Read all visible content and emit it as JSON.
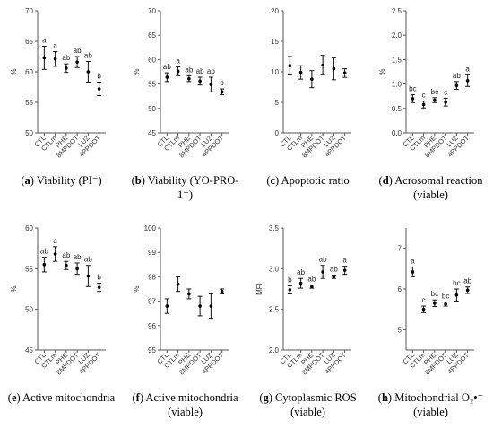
{
  "chart_data": [
    {
      "type": "scatter",
      "caption": {
        "letter": "a",
        "text": "Viability (PI⁻)"
      },
      "ylabel": "%",
      "ylim": [
        50,
        70
      ],
      "yticks": [
        "50",
        "55",
        "60",
        "65",
        "70"
      ],
      "categories": [
        "CTL",
        "CTLm",
        "PHE",
        "8MPDOT",
        "LUZ",
        "4PPDOT"
      ],
      "series": [
        {
          "values": [
            62.3,
            62.1,
            60.6,
            61.6,
            60.0,
            57.2
          ],
          "errors": [
            1.9,
            1.2,
            0.7,
            0.9,
            1.7,
            1.1
          ],
          "letters": [
            "a",
            "a",
            "ab",
            "ab",
            "ab",
            "b"
          ]
        }
      ]
    },
    {
      "type": "scatter",
      "caption": {
        "letter": "b",
        "text": "Viability (YO-PRO-1⁻)"
      },
      "ylabel": "%",
      "ylim": [
        45,
        70
      ],
      "yticks": [
        "45",
        "50",
        "55",
        "60",
        "65",
        "70"
      ],
      "categories": [
        "CTL",
        "CTLm",
        "PHE",
        "8MPDOT",
        "LUZ",
        "4PPDOT"
      ],
      "series": [
        {
          "values": [
            56.4,
            57.6,
            56.1,
            55.6,
            54.9,
            53.4
          ],
          "errors": [
            0.9,
            0.9,
            0.6,
            0.8,
            1.5,
            0.6
          ],
          "letters": [
            "ab",
            "a",
            "ab",
            "ab",
            "ab",
            "b"
          ]
        }
      ]
    },
    {
      "type": "scatter",
      "caption": {
        "letter": "c",
        "text": "Apoptotic ratio"
      },
      "ylabel": "",
      "ylim": [
        0,
        20
      ],
      "yticks": [
        "0",
        "5",
        "10",
        "15",
        "20"
      ],
      "categories": [
        "CTL",
        "CTLm",
        "PHE",
        "8MPDOT",
        "LUZ",
        "4PPDOT"
      ],
      "series": [
        {
          "values": [
            11.0,
            9.9,
            8.8,
            11.1,
            10.5,
            9.8
          ],
          "errors": [
            1.5,
            1.1,
            1.4,
            1.6,
            1.8,
            0.7
          ],
          "letters": [
            "",
            "",
            "",
            "",
            "",
            ""
          ]
        }
      ]
    },
    {
      "type": "scatter",
      "caption": {
        "letter": "d",
        "text": "Acrosomal reaction (viable)"
      },
      "ylabel": "%",
      "ylim": [
        0,
        2.5
      ],
      "yticks": [
        "0.0",
        "0.5",
        "1.0",
        "1.5",
        "2.0",
        "2.5"
      ],
      "categories": [
        "CTL",
        "CTLm",
        "PHE",
        "8MPDOT",
        "LUZ",
        "4PPDOT"
      ],
      "series": [
        {
          "values": [
            0.7,
            0.58,
            0.67,
            0.63,
            0.97,
            1.07
          ],
          "errors": [
            0.08,
            0.07,
            0.05,
            0.08,
            0.08,
            0.12
          ],
          "letters": [
            "bc",
            "c",
            "bc",
            "c",
            "ab",
            "a"
          ]
        }
      ]
    },
    {
      "type": "scatter",
      "caption": {
        "letter": "e",
        "text": "Active mitochondria"
      },
      "ylabel": "%",
      "ylim": [
        45,
        60
      ],
      "yticks": [
        "45",
        "50",
        "55",
        "60"
      ],
      "categories": [
        "CTL",
        "CTLm",
        "PHE",
        "8MPDOT",
        "LUZ",
        "4PPDOT"
      ],
      "series": [
        {
          "values": [
            55.5,
            56.8,
            55.4,
            55.0,
            54.1,
            52.7
          ],
          "errors": [
            0.9,
            0.9,
            0.5,
            0.7,
            1.3,
            0.5
          ],
          "letters": [
            "ab",
            "a",
            "ab",
            "ab",
            "ab",
            "b"
          ]
        }
      ]
    },
    {
      "type": "scatter",
      "caption": {
        "letter": "f",
        "text": "Active mitochondria (viable)"
      },
      "ylabel": "%",
      "ylim": [
        95,
        100
      ],
      "yticks": [
        "95",
        "96",
        "97",
        "98",
        "99",
        "100"
      ],
      "categories": [
        "CTL",
        "CTLm",
        "PHE",
        "8MPDOT",
        "LUZ",
        "4PPDOT"
      ],
      "series": [
        {
          "values": [
            96.8,
            97.7,
            97.3,
            96.8,
            96.8,
            97.4
          ],
          "errors": [
            0.3,
            0.3,
            0.2,
            0.4,
            0.5,
            0.1
          ],
          "letters": [
            "",
            "",
            "",
            "",
            "",
            ""
          ]
        }
      ]
    },
    {
      "type": "scatter",
      "caption": {
        "letter": "g",
        "text": "Cytoplasmic ROS (viable)"
      },
      "ylabel": "MFI",
      "ylim": [
        2.0,
        3.5
      ],
      "yticks": [
        "2.0",
        "2.5",
        "3.0",
        "3.5"
      ],
      "categories": [
        "CTL",
        "CTLm",
        "PHE",
        "8MPDOT",
        "LUZ",
        "4PPDOT"
      ],
      "series": [
        {
          "values": [
            2.74,
            2.82,
            2.78,
            2.96,
            2.9,
            2.98
          ],
          "errors": [
            0.05,
            0.06,
            0.02,
            0.08,
            0.02,
            0.05
          ],
          "letters": [
            "b",
            "ab",
            "ab",
            "ab",
            "ab",
            "a"
          ]
        }
      ]
    },
    {
      "type": "scatter",
      "caption": {
        "letter": "h",
        "text": "Mitochondrial O₂•⁻ (viable)"
      },
      "ylabel": "",
      "ylim": [
        4.5,
        7.5
      ],
      "yticks": [
        "5",
        "6",
        "7"
      ],
      "categories": [
        "CTL",
        "CTLm",
        "PHE",
        "8MPDOT",
        "LUZ",
        "4PPDOT"
      ],
      "series": [
        {
          "values": [
            6.42,
            5.5,
            5.65,
            5.63,
            5.85,
            5.97
          ],
          "errors": [
            0.12,
            0.08,
            0.08,
            0.05,
            0.15,
            0.08
          ],
          "letters": [
            "a",
            "c",
            "bc",
            "bc",
            "bc",
            "ab"
          ]
        }
      ]
    }
  ]
}
